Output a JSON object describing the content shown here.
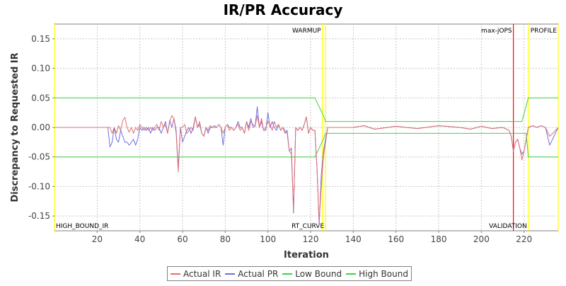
{
  "chart_data": {
    "type": "line",
    "title": "IR/PR Accuracy",
    "xlabel": "Iteration",
    "ylabel": "Discrepancy to Requested IR",
    "xlim": [
      0,
      236
    ],
    "ylim": [
      -0.175,
      0.175
    ],
    "x_ticks": [
      "20",
      "40",
      "60",
      "80",
      "100",
      "120",
      "140",
      "160",
      "180",
      "200",
      "220"
    ],
    "y_ticks": [
      "0.15",
      "0.10",
      "0.05",
      "0.00",
      "-0.05",
      "-0.10",
      "-0.15"
    ],
    "grid": true,
    "legend_position": "bottom",
    "markers": [
      {
        "label": "HIGH_BOUND_IR",
        "x": 0,
        "color": "#ffff00",
        "label_pos": "bottom"
      },
      {
        "label": "WARMUP",
        "x": 125.5,
        "color": "#ffff00",
        "label_pos": "top"
      },
      {
        "label": "RT_CURVE",
        "x": 127,
        "color": "#ffff00",
        "label_pos": "bottom"
      },
      {
        "label": "max-jOPS",
        "x": 215,
        "color": "#ff0000",
        "label_pos": "top"
      },
      {
        "label": "VALIDATION",
        "x": 222,
        "color": "#ffff00",
        "label_pos": "bottom"
      },
      {
        "label": "PROFILE",
        "x": 236,
        "color": "#ffff00",
        "label_pos": "top"
      }
    ],
    "series": [
      {
        "name": "Actual IR",
        "color": "#e07070",
        "x": [
          0,
          25,
          26,
          27,
          28,
          29,
          30,
          31,
          32,
          33,
          34,
          35,
          36,
          37,
          38,
          39,
          40,
          41,
          42,
          43,
          44,
          45,
          46,
          47,
          48,
          49,
          50,
          51,
          52,
          53,
          54,
          55,
          56,
          57,
          58,
          59,
          60,
          61,
          62,
          63,
          64,
          65,
          66,
          67,
          68,
          69,
          70,
          71,
          72,
          73,
          74,
          75,
          76,
          77,
          78,
          79,
          80,
          81,
          82,
          83,
          84,
          85,
          86,
          87,
          88,
          89,
          90,
          91,
          92,
          93,
          94,
          95,
          96,
          97,
          98,
          99,
          100,
          101,
          102,
          103,
          104,
          105,
          106,
          107,
          108,
          109,
          110,
          111,
          112,
          113,
          114,
          115,
          116,
          117,
          118,
          119,
          120,
          121,
          122,
          123,
          124,
          125,
          126,
          128,
          140,
          145,
          150,
          160,
          170,
          180,
          190,
          195,
          200,
          205,
          210,
          213,
          214,
          215,
          216,
          217,
          218,
          219,
          220,
          221,
          222,
          224,
          226,
          228,
          230,
          232,
          234,
          236
        ],
        "values": [
          0,
          0,
          0,
          -0.01,
          0,
          -0.01,
          0.003,
          -0.005,
          0.012,
          0.017,
          0,
          -0.008,
          0,
          -0.01,
          0,
          -0.005,
          0.005,
          0,
          -0.005,
          0,
          -0.005,
          0,
          -0.005,
          0,
          0.005,
          -0.005,
          0.01,
          0,
          0.005,
          -0.01,
          0.01,
          0.02,
          0.015,
          -0.01,
          -0.075,
          0,
          0,
          0.005,
          -0.01,
          -0.005,
          0,
          -0.005,
          0.018,
          0,
          0.01,
          -0.01,
          -0.015,
          0,
          -0.005,
          0.003,
          0,
          0,
          0,
          0.005,
          0,
          -0.01,
          0,
          0.005,
          -0.005,
          0,
          -0.005,
          0,
          0.005,
          -0.005,
          0,
          -0.01,
          0.01,
          -0.005,
          0.01,
          0.005,
          0.002,
          0.02,
          0,
          0.015,
          -0.005,
          0,
          0.01,
          0.005,
          -0.005,
          0.01,
          0,
          0.005,
          -0.005,
          0,
          -0.005,
          -0.01,
          -0.04,
          -0.045,
          -0.14,
          0,
          -0.005,
          0,
          -0.005,
          0.005,
          0.018,
          -0.01,
          0,
          -0.005,
          -0.005,
          -0.07,
          -0.16,
          -0.1,
          -0.05,
          0,
          0,
          0.003,
          -0.003,
          0.002,
          -0.002,
          0.003,
          0,
          -0.003,
          0.002,
          -0.002,
          0,
          -0.005,
          -0.015,
          -0.04,
          -0.025,
          -0.02,
          -0.035,
          -0.055,
          -0.04,
          -0.02,
          0,
          0.003,
          0,
          0.003,
          0,
          -0.015,
          -0.008,
          0
        ]
      },
      {
        "name": "Actual PR",
        "color": "#7070e0",
        "x": [
          0,
          25,
          26,
          27,
          28,
          29,
          30,
          31,
          32,
          33,
          34,
          35,
          36,
          37,
          38,
          39,
          40,
          41,
          42,
          43,
          44,
          45,
          46,
          47,
          48,
          49,
          50,
          51,
          52,
          53,
          54,
          55,
          56,
          57,
          58,
          59,
          60,
          61,
          62,
          63,
          64,
          65,
          66,
          67,
          68,
          69,
          70,
          71,
          72,
          73,
          74,
          75,
          76,
          77,
          78,
          79,
          80,
          81,
          82,
          83,
          84,
          85,
          86,
          87,
          88,
          89,
          90,
          91,
          92,
          93,
          94,
          95,
          96,
          97,
          98,
          99,
          100,
          101,
          102,
          103,
          104,
          105,
          106,
          107,
          108,
          109,
          110,
          111,
          112,
          113,
          114,
          115,
          116,
          117,
          118,
          119,
          120,
          121,
          122,
          123,
          124,
          125,
          126,
          128,
          140,
          145,
          150,
          160,
          170,
          180,
          190,
          195,
          200,
          205,
          210,
          213,
          214,
          215,
          216,
          217,
          218,
          219,
          220,
          221,
          222,
          224,
          226,
          228,
          230,
          232,
          234,
          236
        ],
        "values": [
          0,
          0,
          -0.033,
          -0.025,
          0,
          -0.02,
          -0.025,
          -0.005,
          -0.015,
          -0.025,
          -0.025,
          -0.03,
          -0.025,
          -0.02,
          -0.03,
          -0.02,
          0,
          -0.005,
          0,
          -0.005,
          0,
          -0.01,
          0,
          -0.005,
          0,
          0,
          -0.01,
          0,
          0.01,
          -0.01,
          0.012,
          0,
          0.015,
          -0.005,
          -0.07,
          0,
          -0.025,
          -0.015,
          -0.005,
          0,
          -0.01,
          0,
          0.018,
          0,
          0.005,
          -0.01,
          -0.015,
          0,
          -0.01,
          0,
          0,
          0.003,
          0,
          0.005,
          0,
          -0.03,
          0,
          0.005,
          0,
          0,
          -0.005,
          0,
          0.01,
          0,
          0,
          -0.01,
          0.01,
          0,
          0.015,
          0,
          0.002,
          0.035,
          0,
          0.01,
          -0.005,
          -0.005,
          0.025,
          0,
          0.01,
          0,
          -0.005,
          0.005,
          -0.005,
          0,
          -0.01,
          -0.005,
          -0.04,
          -0.035,
          -0.145,
          0,
          -0.005,
          0,
          -0.005,
          0.005,
          0.018,
          -0.01,
          0,
          -0.005,
          -0.005,
          -0.07,
          -0.165,
          -0.08,
          -0.04,
          0,
          0,
          0.003,
          -0.003,
          0.002,
          -0.002,
          0.003,
          0,
          -0.003,
          0.002,
          -0.002,
          0,
          -0.005,
          -0.015,
          -0.04,
          -0.025,
          -0.02,
          -0.035,
          -0.045,
          -0.04,
          -0.02,
          0,
          0.003,
          0,
          0.003,
          0,
          -0.03,
          -0.015,
          0
        ]
      },
      {
        "name": "Low Bound",
        "color": "#40d040",
        "x": [
          0,
          122,
          126,
          127,
          214,
          215,
          221,
          222,
          236
        ],
        "values": [
          -0.05,
          -0.05,
          -0.02,
          -0.01,
          -0.01,
          -0.01,
          -0.01,
          -0.05,
          -0.05
        ]
      },
      {
        "name": "High Bound",
        "color": "#40d040",
        "x": [
          0,
          122,
          126,
          127,
          214,
          215,
          219,
          222,
          236
        ],
        "values": [
          0.05,
          0.05,
          0.02,
          0.01,
          0.01,
          0.01,
          0.01,
          0.05,
          0.05
        ]
      }
    ]
  }
}
